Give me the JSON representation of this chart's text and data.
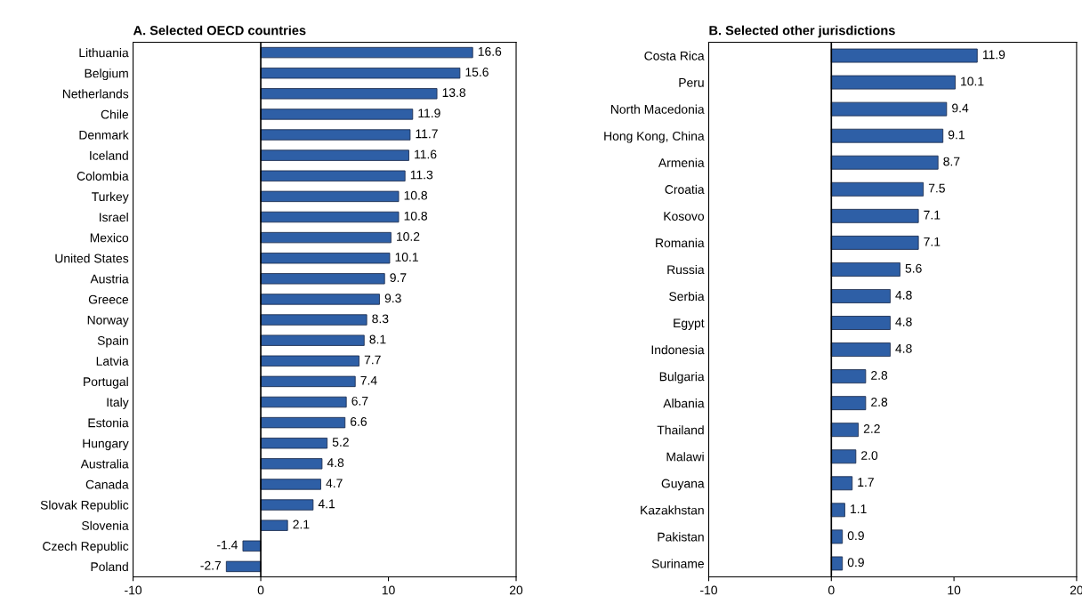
{
  "chart_data": [
    {
      "type": "bar",
      "orientation": "horizontal",
      "title": "A. Selected OECD countries",
      "categories": [
        "Lithuania",
        "Belgium",
        "Netherlands",
        "Chile",
        "Denmark",
        "Iceland",
        "Colombia",
        "Turkey",
        "Israel",
        "Mexico",
        "United States",
        "Austria",
        "Greece",
        "Norway",
        "Spain",
        "Latvia",
        "Portugal",
        "Italy",
        "Estonia",
        "Hungary",
        "Australia",
        "Canada",
        "Slovak Republic",
        "Slovenia",
        "Czech Republic",
        "Poland"
      ],
      "values": [
        16.6,
        15.6,
        13.8,
        11.9,
        11.7,
        11.6,
        11.3,
        10.8,
        10.8,
        10.2,
        10.1,
        9.7,
        9.3,
        8.3,
        8.1,
        7.7,
        7.4,
        6.7,
        6.6,
        5.2,
        4.8,
        4.7,
        4.1,
        2.1,
        -1.4,
        -2.7
      ],
      "color": "#2e5fa6",
      "xlim": [
        -10,
        20
      ],
      "xticks": [
        {
          "value": -10,
          "label": "-10"
        },
        0,
        10,
        20
      ],
      "data_labels": true,
      "grid": false,
      "ref_lines": [
        {
          "axis": "x",
          "value": 0,
          "label": null,
          "color": "#000000"
        }
      ]
    },
    {
      "type": "bar",
      "orientation": "horizontal",
      "title": "B. Selected other jurisdictions",
      "categories": [
        "Costa Rica",
        "Peru",
        "North Macedonia",
        "Hong Kong, China",
        "Armenia",
        "Croatia",
        "Kosovo",
        "Romania",
        "Russia",
        "Serbia",
        "Egypt",
        "Indonesia",
        "Bulgaria",
        "Albania",
        "Thailand",
        "Malawi",
        "Guyana",
        "Kazakhstan",
        "Pakistan",
        "Suriname"
      ],
      "values": [
        11.9,
        10.1,
        9.4,
        9.1,
        8.7,
        7.5,
        7.1,
        7.1,
        5.6,
        4.8,
        4.8,
        4.8,
        2.8,
        2.8,
        2.2,
        2.0,
        1.7,
        1.1,
        0.9,
        0.9
      ],
      "value_labels": [
        "11.9",
        "10.1",
        "9.4",
        "9.1",
        "8.7",
        "7.5",
        "7.1",
        "7.1",
        "5.6",
        "4.8",
        "4.8",
        "4.8",
        "2.8",
        "2.8",
        "2.2",
        "2.0",
        "1.7",
        "1.1",
        "0.9",
        "0.9"
      ],
      "color": "#2e5fa6",
      "xlim": [
        -10,
        20
      ],
      "xticks": [
        {
          "value": -10,
          "label": "-10"
        },
        0,
        10,
        20
      ],
      "grid": false,
      "ref_lines": [
        {
          "axis": "x",
          "value": 0,
          "label": null,
          "color": "#000000"
        }
      ]
    }
  ]
}
